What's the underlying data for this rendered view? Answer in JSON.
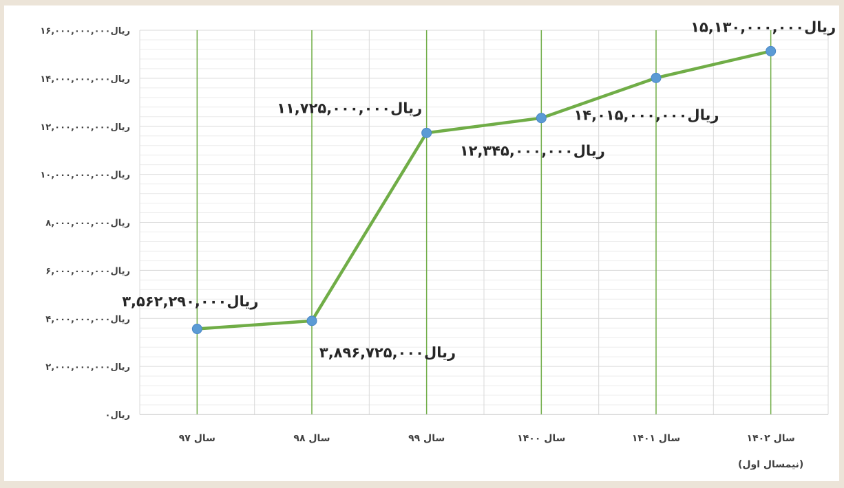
{
  "chart_data": {
    "type": "line",
    "title": "",
    "xlabel": "",
    "ylabel": "",
    "categories": [
      "سال ۹۷",
      "سال ۹۸",
      "سال ۹۹",
      "سال ۱۴۰۰",
      "سال ۱۴۰۱",
      "سال ۱۴۰۲"
    ],
    "category_sublabels": [
      "",
      "",
      "",
      "",
      "",
      "(نیمسال اول)"
    ],
    "series": [
      {
        "values": [
          3562290000,
          3896725000,
          11725000000,
          12345000000,
          14015000000,
          15130000000
        ],
        "color": "#70ad47",
        "marker_color": "#5b9bd5"
      }
    ],
    "data_labels": [
      "ریال۳,۵۶۲,۲۹۰,۰۰۰",
      "ریال۳,۸۹۶,۷۲۵,۰۰۰",
      "ریال۱۱,۷۲۵,۰۰۰,۰۰۰",
      "ریال۱۲,۳۴۵,۰۰۰,۰۰۰",
      "ریال۱۴,۰۱۵,۰۰۰,۰۰۰",
      "ریال۱۵,۱۳۰,۰۰۰,۰۰۰"
    ],
    "y_ticks": [
      0,
      2000000000,
      4000000000,
      6000000000,
      8000000000,
      10000000000,
      12000000000,
      14000000000,
      16000000000
    ],
    "y_tick_labels": [
      "ریال۰",
      "ریال۲,۰۰۰,۰۰۰,۰۰۰",
      "ریال۴,۰۰۰,۰۰۰,۰۰۰",
      "ریال۶,۰۰۰,۰۰۰,۰۰۰",
      "ریال۸,۰۰۰,۰۰۰,۰۰۰",
      "ریال۱۰,۰۰۰,۰۰۰,۰۰۰",
      "ریال۱۲,۰۰۰,۰۰۰,۰۰۰",
      "ریال۱۴,۰۰۰,۰۰۰,۰۰۰",
      "ریال۱۶,۰۰۰,۰۰۰,۰۰۰"
    ],
    "ylim": [
      0,
      16000000000
    ],
    "grid": true,
    "legend": "none",
    "colors": {
      "background": "#ece4d8",
      "plot_background": "#ffffff",
      "gridline": "#d9d9d9",
      "category_line": "#70ad47"
    }
  }
}
